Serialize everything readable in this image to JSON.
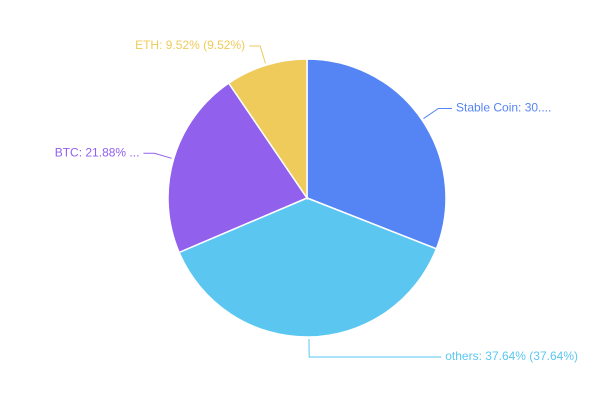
{
  "chart_data": {
    "type": "pie",
    "values": [
      30.96,
      37.64,
      21.88,
      9.52
    ],
    "value_labels": [
      "Stable Coin: 30....",
      "others: 37.64% (37.64%)",
      "BTC: 21.88% ...",
      "ETH: 9.52% (9.52%)"
    ],
    "colors": [
      "#5585f5",
      "#5bc7f0",
      "#9160ec",
      "#eecb5b"
    ]
  }
}
